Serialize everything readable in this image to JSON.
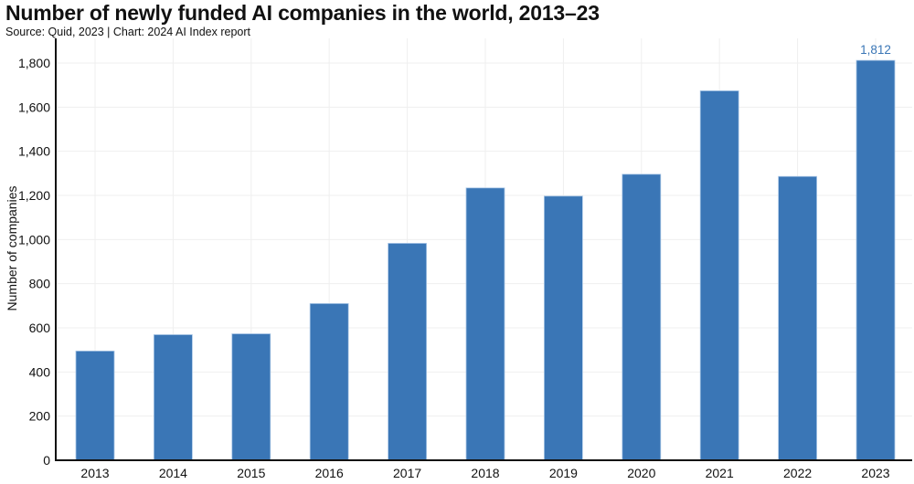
{
  "chart_data": {
    "type": "bar",
    "title": "Number of newly funded AI companies in the world, 2013–23",
    "subtitle": "Source: Quid, 2023 | Chart: 2024 AI Index report",
    "xlabel": "",
    "ylabel": "Number of companies",
    "categories": [
      "2013",
      "2014",
      "2015",
      "2016",
      "2017",
      "2018",
      "2019",
      "2020",
      "2021",
      "2022",
      "2023"
    ],
    "values": [
      495,
      569,
      573,
      710,
      983,
      1234,
      1197,
      1296,
      1674,
      1286,
      1812
    ],
    "ylim": [
      0,
      1900
    ],
    "yticks": [
      0,
      200,
      400,
      600,
      800,
      1000,
      1200,
      1400,
      1600,
      1800
    ],
    "ytick_labels": [
      "0",
      "200",
      "400",
      "600",
      "800",
      "1,000",
      "1,200",
      "1,400",
      "1,600",
      "1,800"
    ],
    "data_labels": [
      {
        "category": "2023",
        "text": "1,812"
      }
    ],
    "grid": true,
    "legend": "none",
    "colors": {
      "bar": "#3a76b6",
      "bar_edge": "#a9c6e6",
      "grid": "#efefef",
      "axis": "#111111",
      "label": "#3a76b6"
    }
  }
}
